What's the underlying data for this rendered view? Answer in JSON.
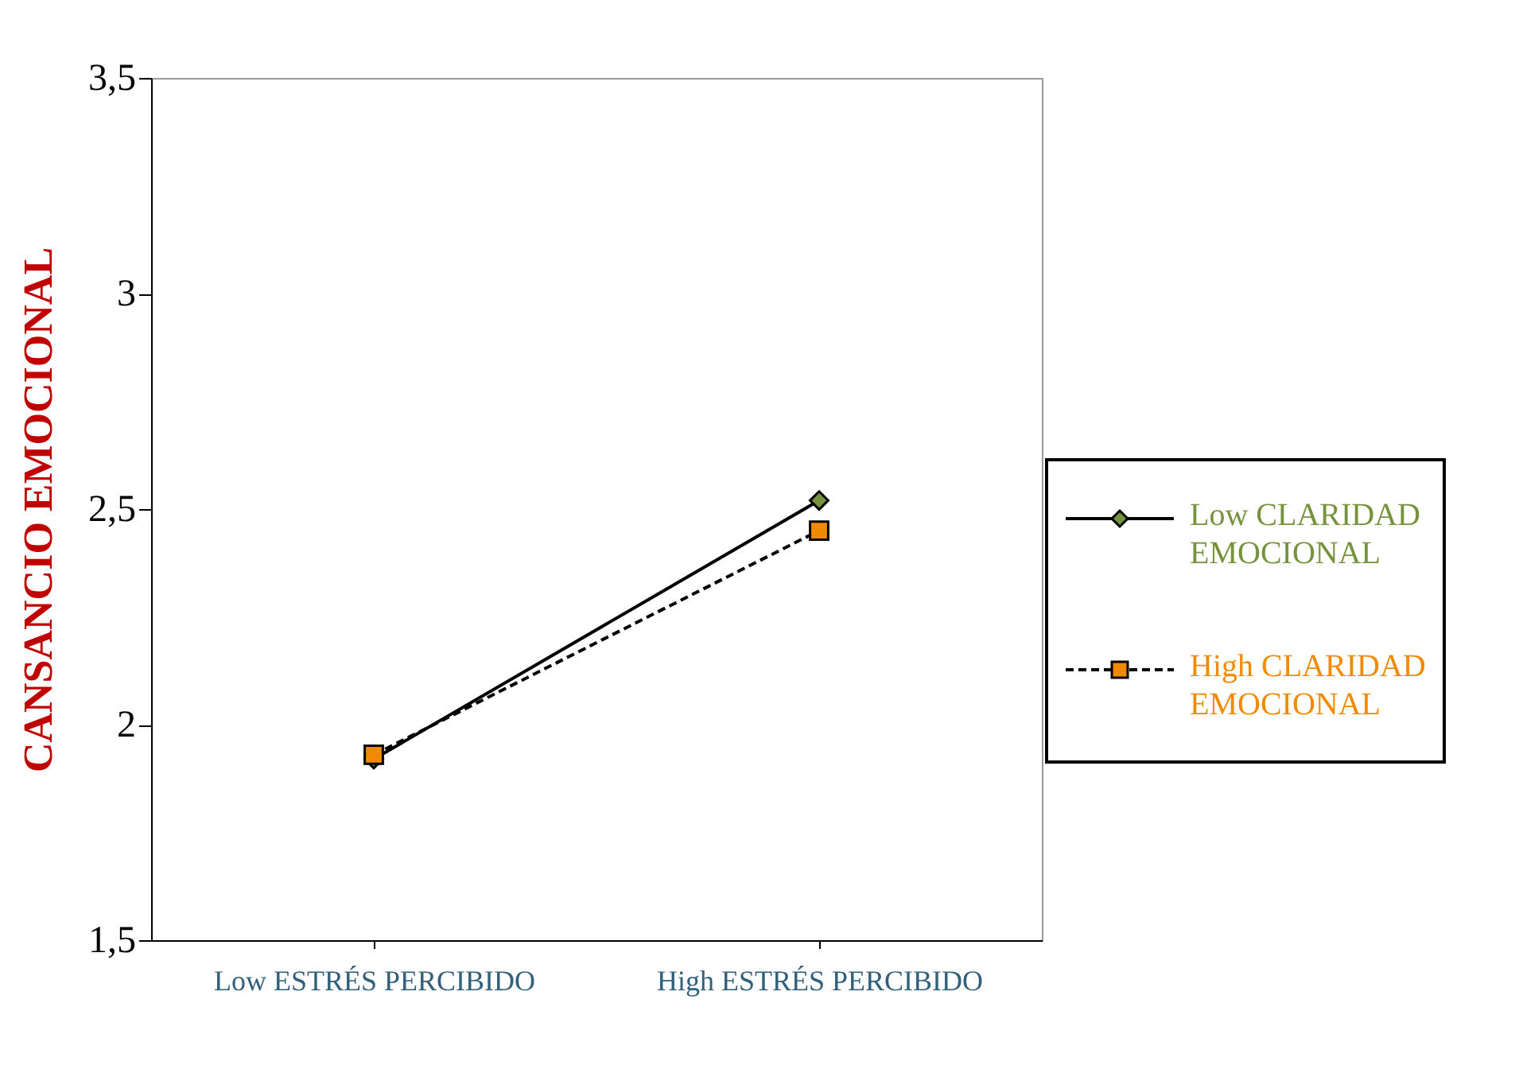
{
  "chart_data": {
    "type": "line",
    "ylabel": "CANSANCIO EMOCIONAL",
    "categories": [
      "Low ESTRÉS PERCIBIDO",
      "High ESTRÉS PERCIBIDO"
    ],
    "series": [
      {
        "name": "Low CLARIDAD EMOCIONAL",
        "color": "#76923c",
        "values": [
          1.92,
          2.52
        ],
        "marker": "diamond",
        "line_style": "solid"
      },
      {
        "name": "High CLARIDAD EMOCIONAL",
        "color": "#f08a00",
        "values": [
          1.93,
          2.45
        ],
        "marker": "square",
        "line_style": "dashed"
      }
    ],
    "ylim": [
      1.5,
      3.5
    ],
    "yticks": [
      {
        "value": 1.5,
        "label": "1,5"
      },
      2,
      {
        "value": 2.5,
        "label": "2,5"
      },
      3,
      {
        "value": 3.5,
        "label": "3,5"
      }
    ],
    "grid": false,
    "legend": "right"
  }
}
